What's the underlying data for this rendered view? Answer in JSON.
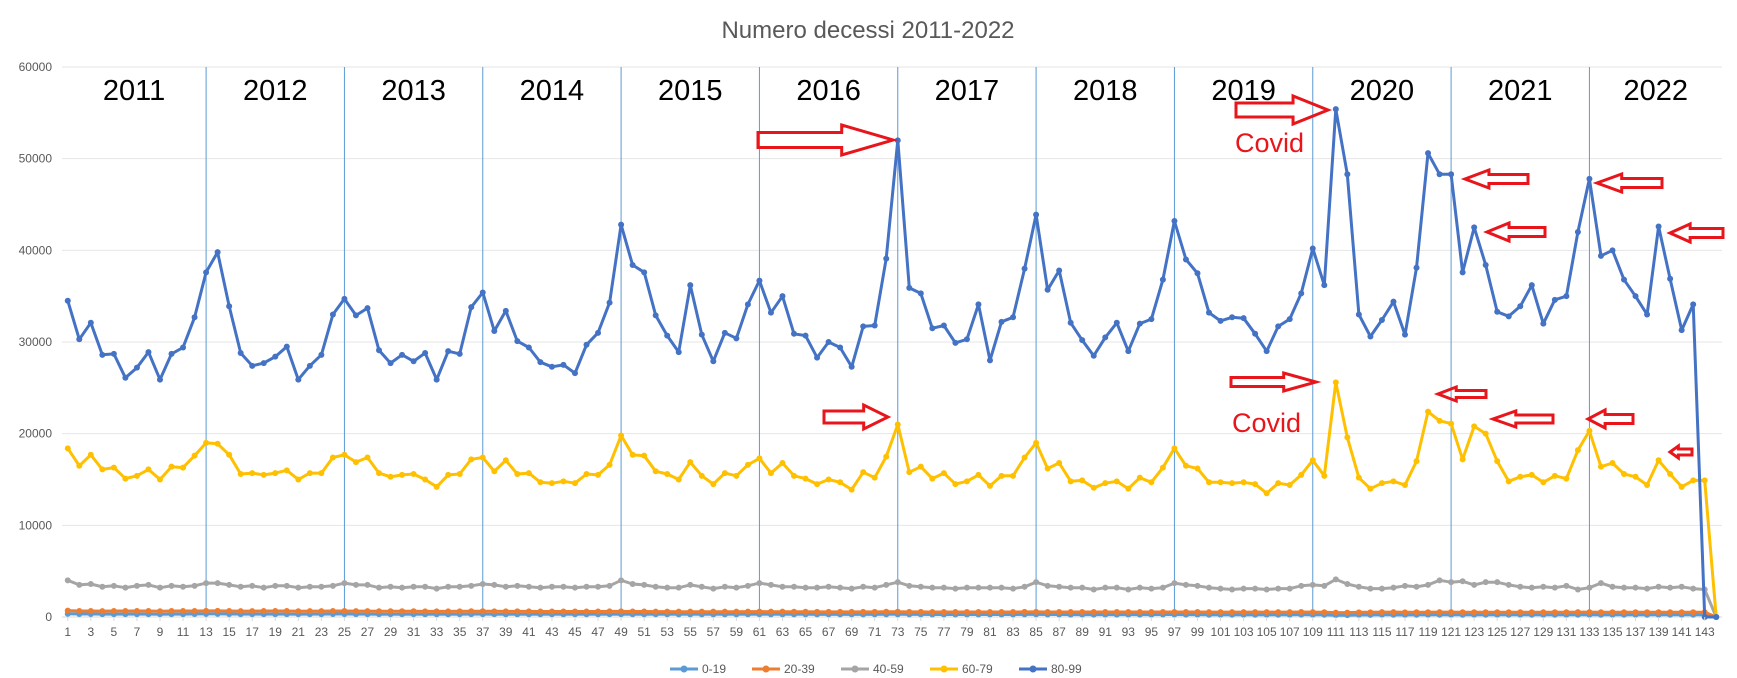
{
  "chart_data": {
    "type": "line",
    "title": "Numero decessi 2011-2022",
    "xlabel": "",
    "ylabel": "",
    "ylim": [
      0,
      60000
    ],
    "yticks": [
      0,
      10000,
      20000,
      30000,
      40000,
      50000,
      60000
    ],
    "x_range": [
      1,
      144
    ],
    "x_tick_labels": [
      "1",
      "3",
      "5",
      "7",
      "9",
      "11",
      "13",
      "15",
      "17",
      "19",
      "21",
      "23",
      "25",
      "27",
      "29",
      "31",
      "33",
      "35",
      "37",
      "39",
      "41",
      "43",
      "45",
      "47",
      "49",
      "51",
      "53",
      "55",
      "57",
      "59",
      "61",
      "63",
      "65",
      "67",
      "69",
      "71",
      "73",
      "75",
      "77",
      "79",
      "81",
      "83",
      "85",
      "87",
      "89",
      "91",
      "93",
      "95",
      "97",
      "99",
      "101",
      "103",
      "105",
      "107",
      "109",
      "111",
      "113",
      "115",
      "117",
      "119",
      "121",
      "123",
      "125",
      "127",
      "129",
      "131",
      "133",
      "135",
      "137",
      "139",
      "141",
      "143"
    ],
    "grid": true,
    "legend": "bottom",
    "year_labels": [
      "2011",
      "2012",
      "2013",
      "2014",
      "2015",
      "2016",
      "2017",
      "2018",
      "2019",
      "2020",
      "2021",
      "2022"
    ],
    "year_boundaries": [
      12.5,
      24.5,
      36.5,
      48.5,
      60.5,
      72.5,
      84.5,
      96.5,
      108.5,
      120.5,
      132.5
    ],
    "annotations": {
      "covid_label": "Covid"
    },
    "series": [
      {
        "name": "0-19",
        "color": "#5b9bd5",
        "values": [
          350,
          330,
          330,
          320,
          320,
          320,
          320,
          320,
          310,
          320,
          320,
          330,
          340,
          340,
          330,
          320,
          320,
          320,
          320,
          320,
          310,
          320,
          320,
          330,
          330,
          320,
          320,
          310,
          310,
          310,
          310,
          300,
          300,
          300,
          310,
          320,
          320,
          310,
          300,
          300,
          300,
          300,
          300,
          300,
          300,
          300,
          300,
          310,
          310,
          300,
          300,
          300,
          300,
          290,
          290,
          290,
          290,
          290,
          290,
          300,
          300,
          290,
          290,
          290,
          290,
          280,
          280,
          280,
          280,
          280,
          280,
          290,
          290,
          280,
          280,
          270,
          270,
          270,
          270,
          270,
          270,
          270,
          270,
          280,
          280,
          270,
          270,
          260,
          260,
          260,
          260,
          260,
          260,
          260,
          260,
          270,
          270,
          260,
          260,
          250,
          250,
          250,
          250,
          250,
          250,
          250,
          250,
          260,
          250,
          240,
          200,
          200,
          230,
          230,
          240,
          240,
          230,
          240,
          240,
          250,
          250,
          240,
          240,
          240,
          240,
          240,
          240,
          240,
          240,
          240,
          240,
          250,
          250,
          240,
          240,
          240,
          240,
          240,
          240,
          240,
          240,
          240,
          240,
          0
        ]
      },
      {
        "name": "20-39",
        "color": "#ed7d31",
        "values": [
          700,
          660,
          660,
          640,
          650,
          650,
          660,
          650,
          630,
          650,
          650,
          660,
          670,
          670,
          650,
          640,
          640,
          650,
          650,
          650,
          630,
          640,
          640,
          650,
          650,
          640,
          640,
          630,
          630,
          630,
          630,
          610,
          610,
          610,
          620,
          630,
          630,
          620,
          610,
          610,
          610,
          600,
          600,
          600,
          600,
          600,
          600,
          610,
          610,
          600,
          600,
          590,
          590,
          580,
          580,
          580,
          580,
          580,
          580,
          590,
          590,
          580,
          580,
          570,
          570,
          560,
          560,
          560,
          560,
          560,
          560,
          570,
          570,
          560,
          560,
          550,
          550,
          550,
          550,
          550,
          550,
          550,
          550,
          560,
          560,
          550,
          550,
          540,
          540,
          540,
          540,
          540,
          540,
          540,
          540,
          550,
          550,
          540,
          540,
          530,
          530,
          530,
          530,
          530,
          530,
          530,
          530,
          540,
          530,
          520,
          480,
          480,
          510,
          510,
          530,
          530,
          510,
          520,
          520,
          530,
          530,
          520,
          520,
          520,
          520,
          520,
          520,
          520,
          520,
          520,
          520,
          530,
          530,
          520,
          520,
          520,
          520,
          520,
          520,
          520,
          520,
          520,
          520,
          0
        ]
      },
      {
        "name": "40-59",
        "color": "#a5a5a5",
        "values": [
          4000,
          3500,
          3600,
          3300,
          3400,
          3200,
          3400,
          3500,
          3200,
          3400,
          3300,
          3400,
          3700,
          3700,
          3500,
          3300,
          3400,
          3200,
          3400,
          3400,
          3200,
          3300,
          3300,
          3400,
          3700,
          3500,
          3500,
          3200,
          3300,
          3200,
          3300,
          3300,
          3100,
          3300,
          3300,
          3400,
          3600,
          3500,
          3300,
          3400,
          3300,
          3200,
          3300,
          3300,
          3200,
          3300,
          3300,
          3400,
          4000,
          3600,
          3500,
          3300,
          3200,
          3200,
          3500,
          3300,
          3100,
          3300,
          3200,
          3400,
          3700,
          3500,
          3300,
          3300,
          3200,
          3200,
          3300,
          3200,
          3100,
          3300,
          3200,
          3500,
          3800,
          3400,
          3300,
          3200,
          3200,
          3100,
          3200,
          3200,
          3200,
          3200,
          3100,
          3300,
          3800,
          3400,
          3300,
          3200,
          3200,
          3000,
          3200,
          3200,
          3000,
          3200,
          3100,
          3200,
          3700,
          3500,
          3400,
          3200,
          3100,
          3000,
          3100,
          3100,
          3000,
          3100,
          3100,
          3400,
          3500,
          3400,
          4100,
          3600,
          3300,
          3100,
          3100,
          3200,
          3400,
          3300,
          3500,
          4000,
          3800,
          3900,
          3500,
          3800,
          3800,
          3500,
          3300,
          3200,
          3300,
          3200,
          3400,
          3000,
          3200,
          3700,
          3300,
          3200,
          3200,
          3100,
          3300,
          3200,
          3300,
          3100,
          3000,
          0
        ]
      },
      {
        "name": "60-79",
        "color": "#ffc000",
        "values": [
          18400,
          16500,
          17700,
          16100,
          16300,
          15100,
          15400,
          16100,
          15000,
          16400,
          16300,
          17600,
          19000,
          18900,
          17700,
          15600,
          15700,
          15500,
          15700,
          16000,
          15000,
          15700,
          15700,
          17400,
          17700,
          16900,
          17400,
          15700,
          15300,
          15500,
          15600,
          15000,
          14200,
          15500,
          15600,
          17200,
          17400,
          15900,
          17100,
          15600,
          15700,
          14700,
          14600,
          14800,
          14600,
          15600,
          15500,
          16600,
          19800,
          17700,
          17600,
          15900,
          15600,
          15000,
          16900,
          15400,
          14500,
          15700,
          15400,
          16600,
          17300,
          15700,
          16800,
          15400,
          15100,
          14500,
          15000,
          14700,
          13900,
          15800,
          15200,
          17500,
          21000,
          15800,
          16400,
          15100,
          15700,
          14500,
          14800,
          15500,
          14300,
          15400,
          15400,
          17400,
          19000,
          16200,
          16800,
          14800,
          14900,
          14100,
          14600,
          14800,
          14000,
          15200,
          14700,
          16300,
          18400,
          16500,
          16200,
          14700,
          14700,
          14600,
          14700,
          14500,
          13500,
          14600,
          14400,
          15500,
          17100,
          15400,
          25600,
          19600,
          15200,
          14000,
          14600,
          14800,
          14400,
          17000,
          22400,
          21400,
          21100,
          17200,
          20800,
          20000,
          17000,
          14800,
          15300,
          15500,
          14700,
          15400,
          15100,
          18200,
          20300,
          16400,
          16800,
          15600,
          15300,
          14400,
          17100,
          15600,
          14200,
          14900,
          14900,
          0
        ]
      },
      {
        "name": "80-99",
        "color": "#4472c4",
        "values": [
          34500,
          30300,
          32100,
          28600,
          28700,
          26100,
          27200,
          28900,
          25900,
          28700,
          29400,
          32700,
          37600,
          39800,
          33900,
          28800,
          27400,
          27700,
          28400,
          29500,
          25900,
          27400,
          28600,
          33000,
          34700,
          32900,
          33700,
          29100,
          27700,
          28600,
          27900,
          28800,
          25900,
          29000,
          28700,
          33800,
          35400,
          31200,
          33400,
          30100,
          29400,
          27800,
          27300,
          27500,
          26600,
          29700,
          31000,
          34300,
          42800,
          38400,
          37600,
          32900,
          30700,
          28900,
          36200,
          30800,
          27900,
          31000,
          30400,
          34100,
          36700,
          33200,
          35000,
          30900,
          30700,
          28300,
          30000,
          29400,
          27300,
          31700,
          31800,
          39100,
          52000,
          35900,
          35300,
          31500,
          31800,
          29900,
          30300,
          34100,
          28000,
          32200,
          32700,
          38000,
          43900,
          35700,
          37800,
          32100,
          30200,
          28500,
          30500,
          32100,
          29000,
          32000,
          32500,
          36800,
          43200,
          39000,
          37500,
          33200,
          32300,
          32700,
          32600,
          30900,
          29000,
          31700,
          32500,
          35300,
          40200,
          36200,
          55400,
          48300,
          33000,
          30600,
          32400,
          34400,
          30800,
          38100,
          50600,
          48300,
          48300,
          37600,
          42500,
          38400,
          33300,
          32800,
          33900,
          36200,
          32000,
          34600,
          35000,
          42000,
          47800,
          39400,
          40000,
          36800,
          35000,
          33000,
          42600,
          36900,
          31300,
          34100,
          0,
          0
        ]
      }
    ]
  }
}
